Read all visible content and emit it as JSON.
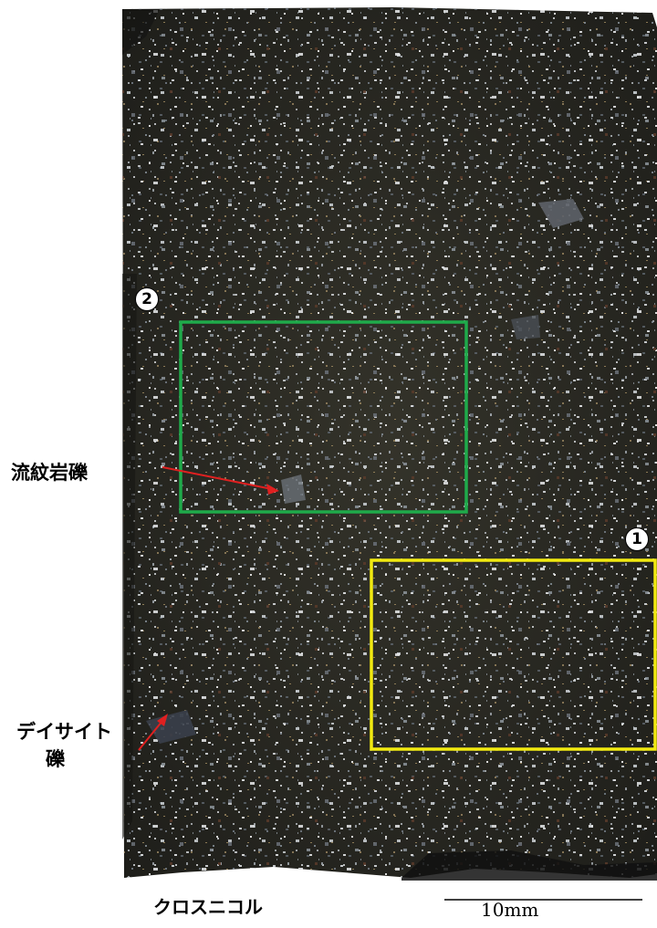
{
  "labels": {
    "rhyolite": "流紋岩礫",
    "dacite_line1": "デイサイト",
    "dacite_line2": "礫",
    "caption": "クロスニコル",
    "scale": "10mm",
    "marker_1": "1",
    "marker_2": "2"
  },
  "colors": {
    "matrix": "#2b2a22",
    "grain_light": "#c8ccd0",
    "box_green": "#1faa4a",
    "box_yellow": "#f2ea10",
    "arrow": "#e02020",
    "background": "#ffffff"
  }
}
